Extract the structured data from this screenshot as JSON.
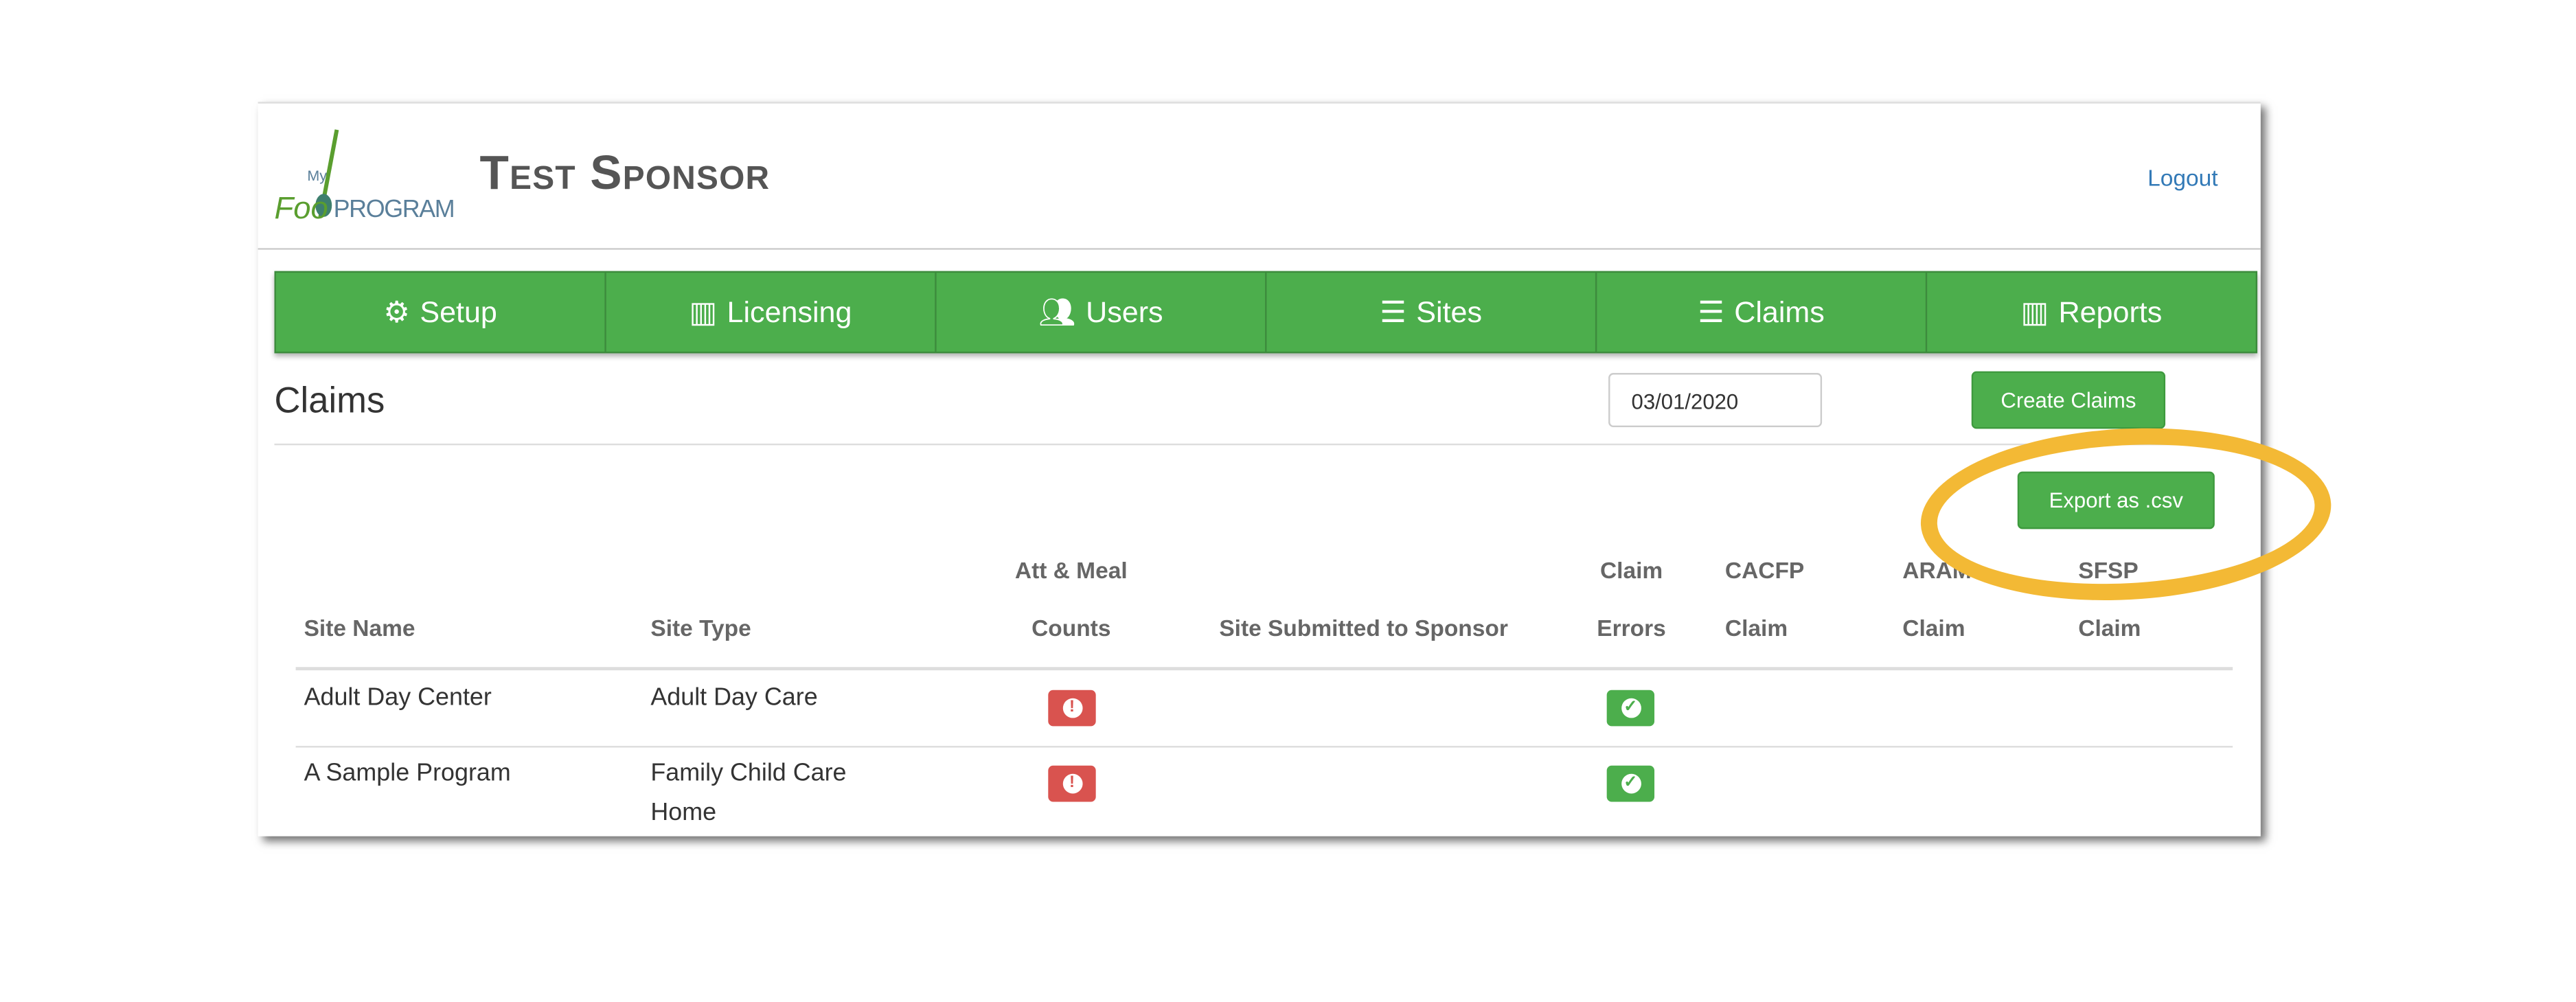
{
  "header": {
    "logo_text": "My Food PROGRAM",
    "title": "Test Sponsor",
    "logout": "Logout"
  },
  "nav": [
    {
      "label": "Setup",
      "icon": "gears-icon"
    },
    {
      "label": "Licensing",
      "icon": "bar-chart-icon"
    },
    {
      "label": "Users",
      "icon": "users-icon"
    },
    {
      "label": "Sites",
      "icon": "list-icon"
    },
    {
      "label": "Claims",
      "icon": "list-icon"
    },
    {
      "label": "Reports",
      "icon": "bar-chart-icon"
    }
  ],
  "page": {
    "heading": "Claims",
    "date_value": "03/01/2020",
    "create_button": "Create Claims",
    "export_button": "Export as .csv",
    "highlight_color": "#f3b935"
  },
  "table": {
    "headers": [
      {
        "line1": "",
        "line2": "Site Name"
      },
      {
        "line1": "",
        "line2": "Site Type"
      },
      {
        "line1": "Att & Meal",
        "line2": "Counts"
      },
      {
        "line1": "",
        "line2": "Site Submitted to Sponsor"
      },
      {
        "line1": "Claim",
        "line2": "Errors"
      },
      {
        "line1": "CACFP",
        "line2": "Claim"
      },
      {
        "line1": "ARAM",
        "line2": "Claim"
      },
      {
        "line1": "SFSP",
        "line2": "Claim"
      }
    ],
    "rows": [
      {
        "site_name": "Adult Day Center",
        "site_type_1": "Adult Day Care",
        "site_type_2": "",
        "counts_status": "error",
        "claim_errors_status": "ok"
      },
      {
        "site_name": "A Sample Program",
        "site_type_1": "Family Child Care",
        "site_type_2": "Home",
        "counts_status": "error",
        "claim_errors_status": "ok"
      }
    ]
  },
  "colors": {
    "brand_green": "#4cae4c",
    "error_red": "#d9534f",
    "link_blue": "#337ab7"
  }
}
